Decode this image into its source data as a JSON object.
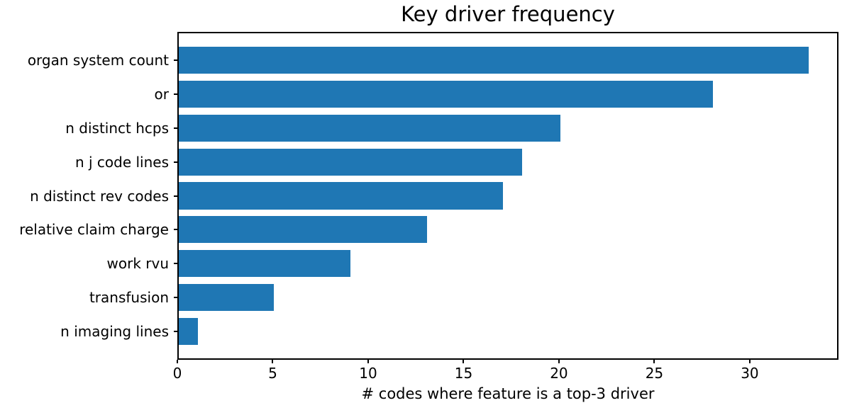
{
  "title": "Key driver frequency",
  "chart_data": {
    "type": "bar",
    "orientation": "horizontal",
    "title": "Key driver frequency",
    "xlabel": "# codes where feature is a top-3 driver",
    "ylabel": "",
    "categories": [
      "organ system count",
      "or",
      "n distinct hcps",
      "n j code lines",
      "n distinct rev codes",
      "relative claim charge",
      "work rvu",
      "transfusion",
      "n imaging lines"
    ],
    "values": [
      33,
      28,
      20,
      18,
      17,
      13,
      9,
      5,
      1
    ],
    "xticks": [
      0,
      5,
      10,
      15,
      20,
      25,
      30
    ],
    "xlim": [
      0,
      34.65
    ],
    "bar_color": "#1f77b4",
    "grid": false,
    "legend": null
  }
}
